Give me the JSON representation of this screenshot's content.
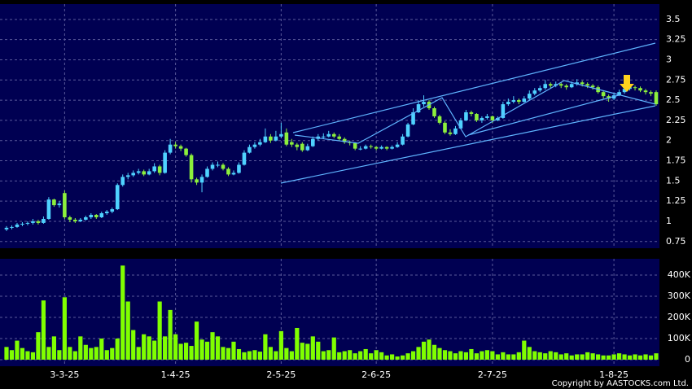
{
  "chart_data": {
    "type": "candlestick",
    "categories": [
      null,
      null,
      null,
      null,
      null,
      null,
      null,
      null,
      null,
      null,
      null,
      "3-3-25",
      null,
      null,
      null,
      null,
      null,
      null,
      null,
      null,
      null,
      null,
      null,
      null,
      null,
      null,
      null,
      null,
      null,
      null,
      null,
      null,
      "1-4-25",
      null,
      null,
      null,
      null,
      null,
      null,
      null,
      null,
      null,
      null,
      null,
      null,
      null,
      null,
      null,
      null,
      null,
      null,
      null,
      "2-5-25",
      null,
      null,
      null,
      null,
      null,
      null,
      null,
      null,
      null,
      null,
      null,
      null,
      null,
      null,
      null,
      null,
      null,
      "2-6-25",
      null,
      null,
      null,
      null,
      null,
      null,
      null,
      null,
      null,
      null,
      null,
      null,
      null,
      null,
      null,
      null,
      null,
      null,
      null,
      null,
      null,
      "2-7-25",
      null,
      null,
      null,
      null,
      null,
      null,
      null,
      null,
      null,
      null,
      null,
      null,
      null,
      null,
      null,
      null,
      null,
      null,
      null,
      null,
      null,
      null,
      "1-8-25",
      null,
      null,
      null,
      null,
      null,
      null,
      null
    ],
    "candles": [
      [
        0.9,
        0.94,
        0.88,
        0.92
      ],
      [
        0.92,
        0.95,
        0.9,
        0.93
      ],
      [
        0.93,
        0.98,
        0.92,
        0.96
      ],
      [
        0.96,
        0.99,
        0.94,
        0.97
      ],
      [
        0.97,
        1.0,
        0.95,
        0.98
      ],
      [
        0.98,
        1.03,
        0.96,
        1.0
      ],
      [
        1.0,
        1.02,
        0.96,
        0.98
      ],
      [
        0.98,
        1.06,
        0.97,
        1.03
      ],
      [
        1.03,
        1.3,
        1.02,
        1.27
      ],
      [
        1.27,
        1.28,
        1.18,
        1.2
      ],
      [
        1.2,
        1.25,
        1.17,
        1.22
      ],
      [
        1.35,
        1.38,
        1.03,
        1.05
      ],
      [
        1.05,
        1.07,
        0.99,
        1.02
      ],
      [
        1.02,
        1.04,
        0.98,
        1.0
      ],
      [
        1.0,
        1.04,
        0.99,
        1.02
      ],
      [
        1.02,
        1.07,
        1.01,
        1.05
      ],
      [
        1.05,
        1.1,
        1.03,
        1.08
      ],
      [
        1.08,
        1.09,
        1.03,
        1.05
      ],
      [
        1.05,
        1.12,
        1.04,
        1.1
      ],
      [
        1.1,
        1.14,
        1.08,
        1.12
      ],
      [
        1.12,
        1.17,
        1.1,
        1.15
      ],
      [
        1.15,
        1.47,
        1.14,
        1.45
      ],
      [
        1.45,
        1.58,
        1.43,
        1.55
      ],
      [
        1.55,
        1.6,
        1.52,
        1.57
      ],
      [
        1.57,
        1.63,
        1.55,
        1.6
      ],
      [
        1.6,
        1.65,
        1.58,
        1.62
      ],
      [
        1.62,
        1.64,
        1.56,
        1.58
      ],
      [
        1.58,
        1.65,
        1.57,
        1.62
      ],
      [
        1.62,
        1.72,
        1.6,
        1.68
      ],
      [
        1.68,
        1.7,
        1.57,
        1.6
      ],
      [
        1.6,
        1.88,
        1.59,
        1.85
      ],
      [
        1.85,
        2.02,
        1.83,
        1.95
      ],
      [
        1.95,
        1.98,
        1.9,
        1.93
      ],
      [
        1.93,
        1.95,
        1.87,
        1.9
      ],
      [
        1.9,
        1.91,
        1.8,
        1.82
      ],
      [
        1.82,
        1.84,
        1.48,
        1.52
      ],
      [
        1.52,
        1.54,
        1.45,
        1.48
      ],
      [
        1.48,
        1.58,
        1.36,
        1.55
      ],
      [
        1.55,
        1.68,
        1.54,
        1.65
      ],
      [
        1.65,
        1.73,
        1.63,
        1.7
      ],
      [
        1.7,
        1.74,
        1.67,
        1.7
      ],
      [
        1.7,
        1.72,
        1.63,
        1.65
      ],
      [
        1.65,
        1.67,
        1.56,
        1.58
      ],
      [
        1.58,
        1.63,
        1.57,
        1.6
      ],
      [
        1.6,
        1.73,
        1.59,
        1.7
      ],
      [
        1.7,
        1.88,
        1.69,
        1.85
      ],
      [
        1.85,
        1.95,
        1.84,
        1.92
      ],
      [
        1.92,
        1.98,
        1.9,
        1.95
      ],
      [
        1.95,
        2.02,
        1.93,
        1.98
      ],
      [
        1.98,
        2.15,
        1.97,
        2.05
      ],
      [
        2.05,
        2.08,
        1.97,
        2.0
      ],
      [
        2.0,
        2.12,
        1.99,
        2.05
      ],
      [
        2.05,
        2.22,
        2.03,
        2.08
      ],
      [
        2.1,
        2.15,
        1.93,
        1.95
      ],
      [
        1.98,
        2.02,
        1.92,
        1.95
      ],
      [
        1.95,
        1.97,
        1.88,
        1.92
      ],
      [
        1.96,
        1.98,
        1.86,
        1.88
      ],
      [
        1.88,
        1.96,
        1.87,
        1.93
      ],
      [
        1.93,
        2.05,
        1.92,
        2.02
      ],
      [
        2.02,
        2.08,
        2.0,
        2.05
      ],
      [
        2.05,
        2.09,
        2.02,
        2.05
      ],
      [
        2.05,
        2.12,
        2.04,
        2.08
      ],
      [
        2.08,
        2.1,
        2.03,
        2.05
      ],
      [
        2.05,
        2.08,
        2.0,
        2.02
      ],
      [
        2.02,
        2.04,
        1.96,
        1.98
      ],
      [
        1.98,
        2.0,
        1.94,
        1.97
      ],
      [
        1.97,
        1.98,
        1.88,
        1.9
      ],
      [
        1.9,
        1.93,
        1.88,
        1.9
      ],
      [
        1.9,
        1.95,
        1.89,
        1.93
      ],
      [
        1.93,
        1.95,
        1.9,
        1.92
      ],
      [
        1.92,
        1.93,
        1.88,
        1.9
      ],
      [
        1.9,
        1.94,
        1.89,
        1.92
      ],
      [
        1.92,
        1.93,
        1.88,
        1.9
      ],
      [
        1.9,
        1.94,
        1.89,
        1.92
      ],
      [
        1.92,
        1.98,
        1.91,
        1.95
      ],
      [
        1.95,
        2.08,
        1.94,
        2.05
      ],
      [
        2.05,
        2.22,
        2.04,
        2.2
      ],
      [
        2.2,
        2.4,
        2.19,
        2.35
      ],
      [
        2.35,
        2.5,
        2.34,
        2.45
      ],
      [
        2.45,
        2.56,
        2.42,
        2.48
      ],
      [
        2.48,
        2.5,
        2.38,
        2.4
      ],
      [
        2.4,
        2.42,
        2.28,
        2.3
      ],
      [
        2.3,
        2.32,
        2.2,
        2.22
      ],
      [
        2.22,
        2.24,
        2.08,
        2.1
      ],
      [
        2.1,
        2.14,
        2.06,
        2.08
      ],
      [
        2.08,
        2.18,
        2.07,
        2.15
      ],
      [
        2.15,
        2.28,
        2.14,
        2.25
      ],
      [
        2.25,
        2.38,
        2.24,
        2.35
      ],
      [
        2.35,
        2.37,
        2.3,
        2.33
      ],
      [
        2.33,
        2.34,
        2.23,
        2.25
      ],
      [
        2.25,
        2.3,
        2.22,
        2.28
      ],
      [
        2.28,
        2.33,
        2.26,
        2.3
      ],
      [
        2.3,
        2.31,
        2.22,
        2.25
      ],
      [
        2.25,
        2.3,
        2.24,
        2.28
      ],
      [
        2.28,
        2.48,
        2.27,
        2.45
      ],
      [
        2.45,
        2.52,
        2.43,
        2.48
      ],
      [
        2.48,
        2.55,
        2.46,
        2.5
      ],
      [
        2.5,
        2.52,
        2.45,
        2.48
      ],
      [
        2.48,
        2.55,
        2.47,
        2.52
      ],
      [
        2.52,
        2.62,
        2.5,
        2.58
      ],
      [
        2.58,
        2.65,
        2.56,
        2.62
      ],
      [
        2.62,
        2.68,
        2.6,
        2.65
      ],
      [
        2.65,
        2.75,
        2.63,
        2.7
      ],
      [
        2.7,
        2.72,
        2.65,
        2.68
      ],
      [
        2.68,
        2.73,
        2.66,
        2.7
      ],
      [
        2.7,
        2.72,
        2.65,
        2.68
      ],
      [
        2.68,
        2.7,
        2.63,
        2.66
      ],
      [
        2.66,
        2.73,
        2.65,
        2.7
      ],
      [
        2.7,
        2.76,
        2.68,
        2.72
      ],
      [
        2.72,
        2.74,
        2.67,
        2.7
      ],
      [
        2.7,
        2.72,
        2.65,
        2.68
      ],
      [
        2.68,
        2.7,
        2.63,
        2.66
      ],
      [
        2.66,
        2.68,
        2.58,
        2.6
      ],
      [
        2.6,
        2.62,
        2.52,
        2.55
      ],
      [
        2.55,
        2.57,
        2.48,
        2.52
      ],
      [
        2.52,
        2.59,
        2.5,
        2.56
      ],
      [
        2.56,
        2.63,
        2.55,
        2.6
      ],
      [
        2.6,
        2.67,
        2.58,
        2.64
      ],
      [
        2.64,
        2.69,
        2.62,
        2.66
      ],
      [
        2.66,
        2.68,
        2.62,
        2.65
      ],
      [
        2.65,
        2.67,
        2.6,
        2.62
      ],
      [
        2.62,
        2.64,
        2.57,
        2.6
      ],
      [
        2.6,
        2.62,
        2.55,
        2.58
      ],
      [
        2.6,
        2.62,
        2.43,
        2.45
      ]
    ],
    "ylim": [
      0.667,
      3.69
    ],
    "yticks": [
      0.75,
      1,
      1.25,
      1.5,
      1.75,
      2,
      2.25,
      2.5,
      2.75,
      3,
      3.25,
      3.5
    ],
    "grid": true,
    "up_color": "#4fd2ff",
    "down_color": "#8cf03c",
    "volume": {
      "color": "#80ff00",
      "values": [
        60000,
        45000,
        90000,
        55000,
        40000,
        35000,
        130000,
        280000,
        60000,
        110000,
        45000,
        295000,
        60000,
        40000,
        110000,
        70000,
        55000,
        60000,
        100000,
        45000,
        55000,
        100000,
        445000,
        275000,
        140000,
        60000,
        120000,
        110000,
        90000,
        275000,
        110000,
        235000,
        120000,
        75000,
        80000,
        65000,
        180000,
        95000,
        85000,
        130000,
        110000,
        60000,
        55000,
        85000,
        50000,
        35000,
        40000,
        45000,
        38000,
        120000,
        60000,
        40000,
        135000,
        55000,
        40000,
        150000,
        80000,
        75000,
        110000,
        85000,
        40000,
        45000,
        105000,
        35000,
        40000,
        45000,
        30000,
        40000,
        50000,
        30000,
        45000,
        35000,
        20000,
        25000,
        15000,
        20000,
        30000,
        40000,
        60000,
        85000,
        95000,
        70000,
        55000,
        45000,
        40000,
        30000,
        40000,
        35000,
        50000,
        30000,
        40000,
        45000,
        40000,
        25000,
        35000,
        25000,
        25000,
        35000,
        90000,
        60000,
        40000,
        35000,
        30000,
        40000,
        35000,
        25000,
        30000,
        20000,
        25000,
        25000,
        35000,
        30000,
        25000,
        20000,
        20000,
        25000,
        30000,
        25000,
        20000,
        25000,
        20000,
        25000,
        20000,
        30000
      ],
      "ylim": [
        -31000,
        477000
      ],
      "yticks": [
        0,
        {
          "value": 100000,
          "label": "100K"
        },
        {
          "value": 200000,
          "label": "200K"
        },
        {
          "value": 300000,
          "label": "300K"
        },
        {
          "value": 400000,
          "label": "400K"
        }
      ]
    }
  },
  "footer": {
    "copyright": "Copyright by AASTOCKS.com Ltd."
  }
}
